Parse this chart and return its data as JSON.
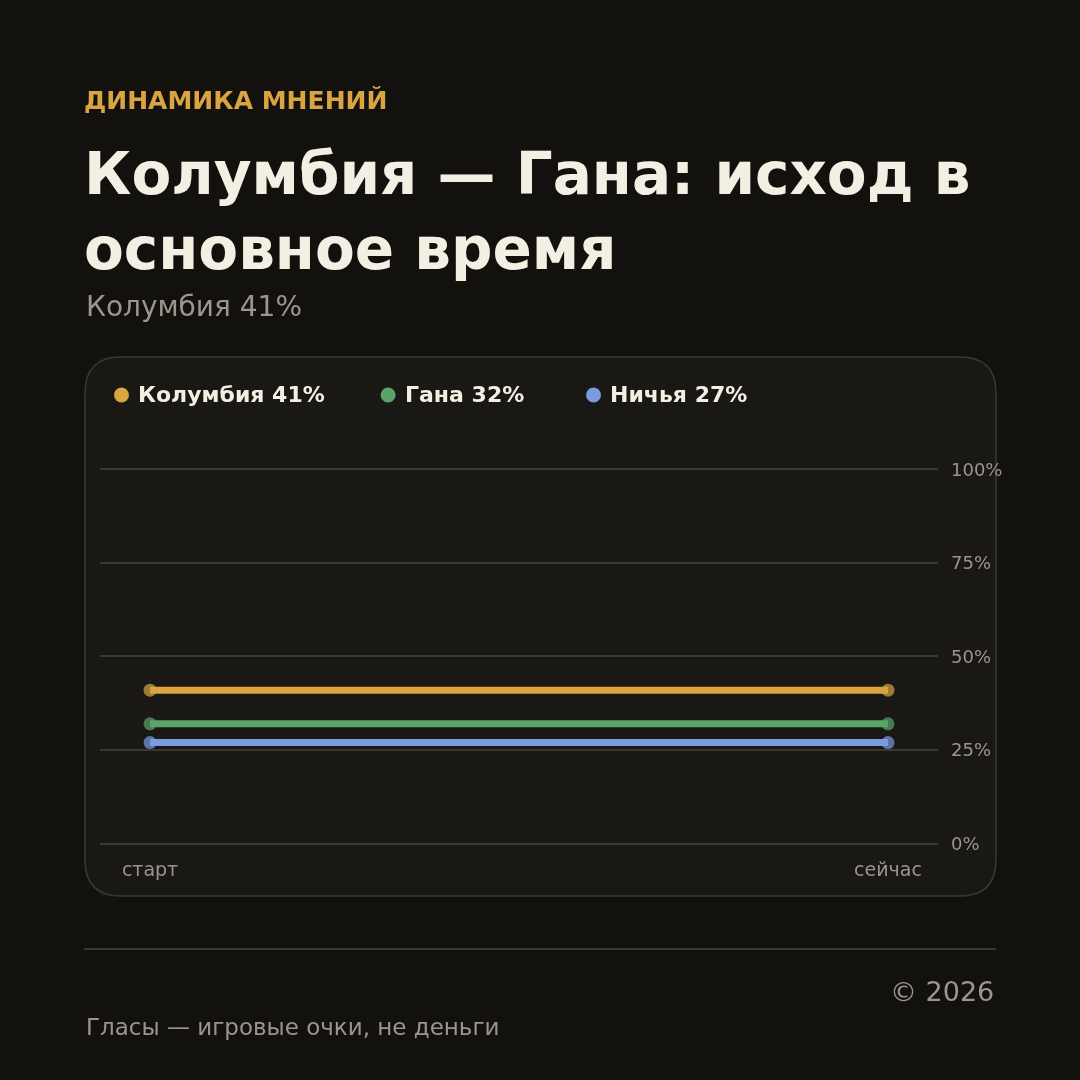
{
  "chart_data": {
    "type": "line",
    "title": "Колумбия — Гана: исход в основное время",
    "subtitle": "Колумбия 41%",
    "annotations": [
      "ДИНАМИКА МНЕНИЙ",
      "Гласы — игровые очки, не деньги",
      "© 2026"
    ],
    "categories": [
      "старт",
      "сейчас"
    ],
    "series": [
      {
        "name": "Колумбия 41%",
        "color": "#d9a441",
        "values": [
          41,
          41
        ]
      },
      {
        "name": "Гана 32%",
        "color": "#5aa469",
        "values": [
          32,
          32
        ]
      },
      {
        "name": "Ничья 27%",
        "color": "#7b9be0",
        "values": [
          27,
          27
        ]
      }
    ],
    "ylim": [
      -14,
      130
    ],
    "yticks": [
      {
        "value": 0,
        "label": "0%"
      },
      {
        "value": 25,
        "label": "25%"
      },
      {
        "value": 50,
        "label": "50%"
      },
      {
        "value": 75,
        "label": "75%"
      },
      {
        "value": 100,
        "label": "100%"
      }
    ],
    "grid": "y",
    "legend": "top left",
    "marker": "circle",
    "line_style": "solid"
  }
}
